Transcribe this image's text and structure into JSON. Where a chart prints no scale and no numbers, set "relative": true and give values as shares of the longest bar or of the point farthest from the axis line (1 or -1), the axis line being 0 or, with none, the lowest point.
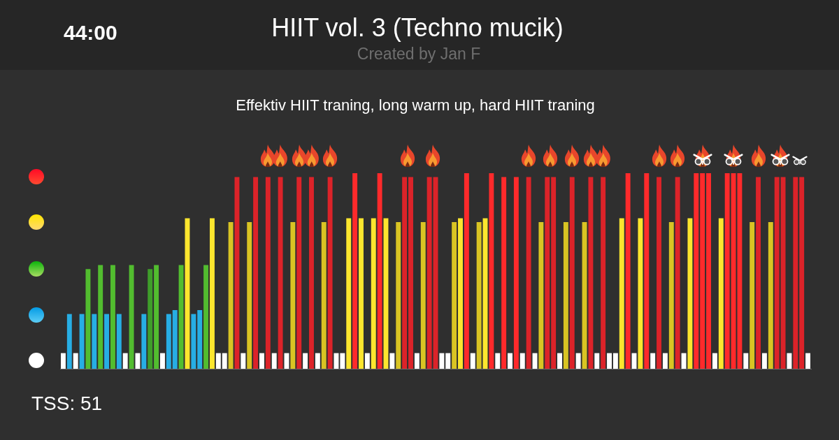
{
  "chart_data": {
    "type": "bar",
    "title": "HIIT vol. 3 (Techno mucik)",
    "subtitle": "Created by Jan F",
    "annotations": [
      "44:00",
      "Effektiv HIIT traning, long warm up, hard HIIT traning",
      "TSS: 51"
    ],
    "relative": true,
    "categories": [
      null,
      null,
      null,
      null,
      null,
      null,
      null,
      null,
      null,
      null,
      null,
      null,
      null,
      null,
      null,
      null,
      null,
      null,
      null,
      null,
      null,
      null,
      null,
      null,
      null,
      null,
      null,
      null,
      null,
      null,
      null,
      null,
      null,
      null,
      null,
      null,
      null,
      null,
      null,
      null,
      null,
      null,
      null,
      null,
      null,
      null,
      null,
      null,
      null,
      null,
      null,
      null,
      null,
      null,
      null,
      null,
      null,
      null,
      null,
      null,
      null,
      null,
      null,
      null,
      null,
      null,
      null,
      null,
      null,
      null,
      null,
      null,
      null,
      null,
      null,
      null,
      null,
      null,
      null,
      null,
      null,
      null,
      null,
      null,
      null,
      null,
      null,
      null,
      null,
      null,
      null,
      null,
      null,
      null,
      null,
      null,
      null,
      null,
      null,
      null,
      null,
      null,
      null,
      null,
      null,
      null,
      null,
      null,
      null,
      null,
      null,
      null,
      null,
      null,
      null,
      null,
      null,
      null,
      null,
      null,
      null
    ],
    "values": [
      0.08,
      0.28,
      0.08,
      0.28,
      0.51,
      0.28,
      0.53,
      0.28,
      0.53,
      0.28,
      0.08,
      0.53,
      0.08,
      0.28,
      0.51,
      0.53,
      0.08,
      0.28,
      0.3,
      0.53,
      0.77,
      0.28,
      0.3,
      0.53,
      0.77,
      0.08,
      0.08,
      0.75,
      0.98,
      0.08,
      0.75,
      0.98,
      0.08,
      0.98,
      0.08,
      0.98,
      0.08,
      0.75,
      0.98,
      0.08,
      0.98,
      0.08,
      0.75,
      0.98,
      0.08,
      0.08,
      0.77,
      1,
      0.77,
      0.08,
      0.77,
      1,
      0.77,
      0.08,
      0.75,
      0.98,
      0.98,
      0.08,
      0.75,
      0.98,
      0.98,
      0.08,
      0.08,
      0.75,
      0.77,
      1,
      0.08,
      0.75,
      0.77,
      1,
      0.08,
      0.98,
      0.08,
      0.98,
      0.08,
      0.98,
      0.08,
      0.75,
      0.98,
      0.98,
      0.08,
      0.75,
      0.98,
      0.08,
      0.75,
      0.98,
      0.08,
      0.98,
      0.08,
      0.08,
      0.77,
      1,
      0.08,
      0.77,
      1,
      0.08,
      0.98,
      0.08,
      0.75,
      0.98,
      0.08,
      0.77,
      1,
      1,
      1,
      0.08,
      0.77,
      1,
      1,
      1,
      0.08,
      0.75,
      0.98,
      0.08,
      0.75,
      0.98,
      0.98,
      0.08,
      0.98,
      0.98,
      0.08
    ],
    "colors": [
      "#ffffff",
      "#27aee4",
      "#ffffff",
      "#27aee4",
      "#52bd2f",
      "#27aee4",
      "#52bd2f",
      "#27aee4",
      "#52bd2f",
      "#27aee4",
      "#ffffff",
      "#52bd2f",
      "#ffffff",
      "#27aee4",
      "#3f9e2a",
      "#52bd2f",
      "#ffffff",
      "#27aee4",
      "#27aee4",
      "#52bd2f",
      "#fce62e",
      "#27aee4",
      "#27aee4",
      "#52bd2f",
      "#fce62e",
      "#ffffff",
      "#ffffff",
      "#d9c423",
      "#dc2329",
      "#ffffff",
      "#d9c423",
      "#dc2329",
      "#ffffff",
      "#dc2329",
      "#ffffff",
      "#dc2329",
      "#ffffff",
      "#d9c423",
      "#dc2329",
      "#ffffff",
      "#dc2329",
      "#ffffff",
      "#d9c423",
      "#dc2329",
      "#ffffff",
      "#ffffff",
      "#fce62e",
      "#ff2a2b",
      "#fce62e",
      "#ffffff",
      "#fce62e",
      "#ff2a2b",
      "#fce62e",
      "#ffffff",
      "#d9c423",
      "#dc2329",
      "#dc2329",
      "#ffffff",
      "#d9c423",
      "#dc2329",
      "#dc2329",
      "#ffffff",
      "#ffffff",
      "#d9c423",
      "#fce62e",
      "#ff2a2b",
      "#ffffff",
      "#d9c423",
      "#fce62e",
      "#ff2a2b",
      "#ffffff",
      "#ff2a2b",
      "#ffffff",
      "#ff2a2b",
      "#ffffff",
      "#dc2329",
      "#ffffff",
      "#d9c423",
      "#dc2329",
      "#dc2329",
      "#ffffff",
      "#d9c423",
      "#dc2329",
      "#ffffff",
      "#d9c423",
      "#dc2329",
      "#ffffff",
      "#dc2329",
      "#ffffff",
      "#ffffff",
      "#fce62e",
      "#ff2a2b",
      "#ffffff",
      "#fce62e",
      "#ff2a2b",
      "#ffffff",
      "#dc2329",
      "#ffffff",
      "#d9c423",
      "#dc2329",
      "#ffffff",
      "#fce62e",
      "#ff2a2b",
      "#ff2a2b",
      "#ff2a2b",
      "#ffffff",
      "#fce62e",
      "#ff2a2b",
      "#ff2a2b",
      "#ff2a2b",
      "#ffffff",
      "#d9c423",
      "#dc2329",
      "#ffffff",
      "#d9c423",
      "#dc2329",
      "#dc2329",
      "#ffffff",
      "#dc2329",
      "#dc2329",
      "#ffffff"
    ]
  }
}
